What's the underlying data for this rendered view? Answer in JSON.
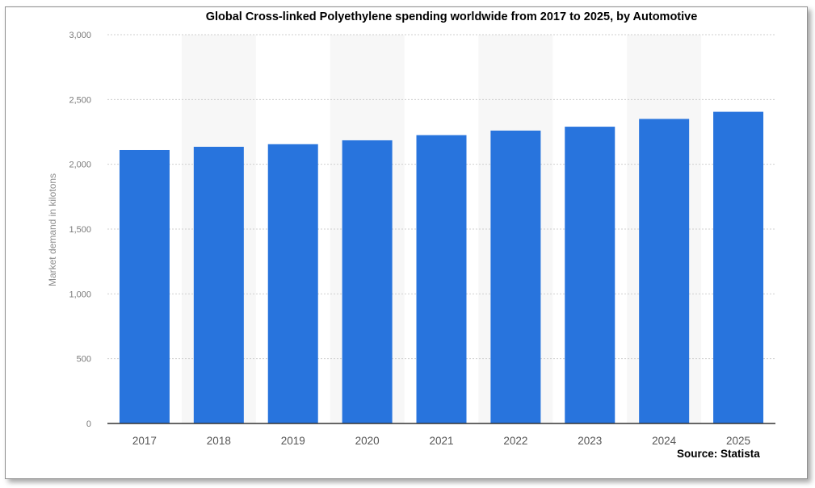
{
  "chart_data": {
    "type": "bar",
    "title": "Global Cross-linked Polyethylene spending worldwide from 2017 to 2025, by Automotive",
    "xlabel": "",
    "ylabel": "Market demand in kilotons",
    "categories": [
      "2017",
      "2018",
      "2019",
      "2020",
      "2021",
      "2022",
      "2023",
      "2024",
      "2025"
    ],
    "values": [
      2110,
      2135,
      2155,
      2185,
      2225,
      2260,
      2290,
      2350,
      2405
    ],
    "ylim": [
      0,
      3000
    ],
    "yticks": [
      0,
      500,
      1000,
      1500,
      2000,
      2500,
      3000
    ],
    "ytick_labels": [
      "0",
      "500",
      "1,000",
      "1,500",
      "2,000",
      "2,500",
      "3,000"
    ],
    "grid": true,
    "legend": "none",
    "colors": {
      "bar": "#2874dd",
      "band": "#f7f7f7",
      "grid": "#cfcfcf",
      "axis": "#333333"
    },
    "source": "Source: Statista"
  }
}
